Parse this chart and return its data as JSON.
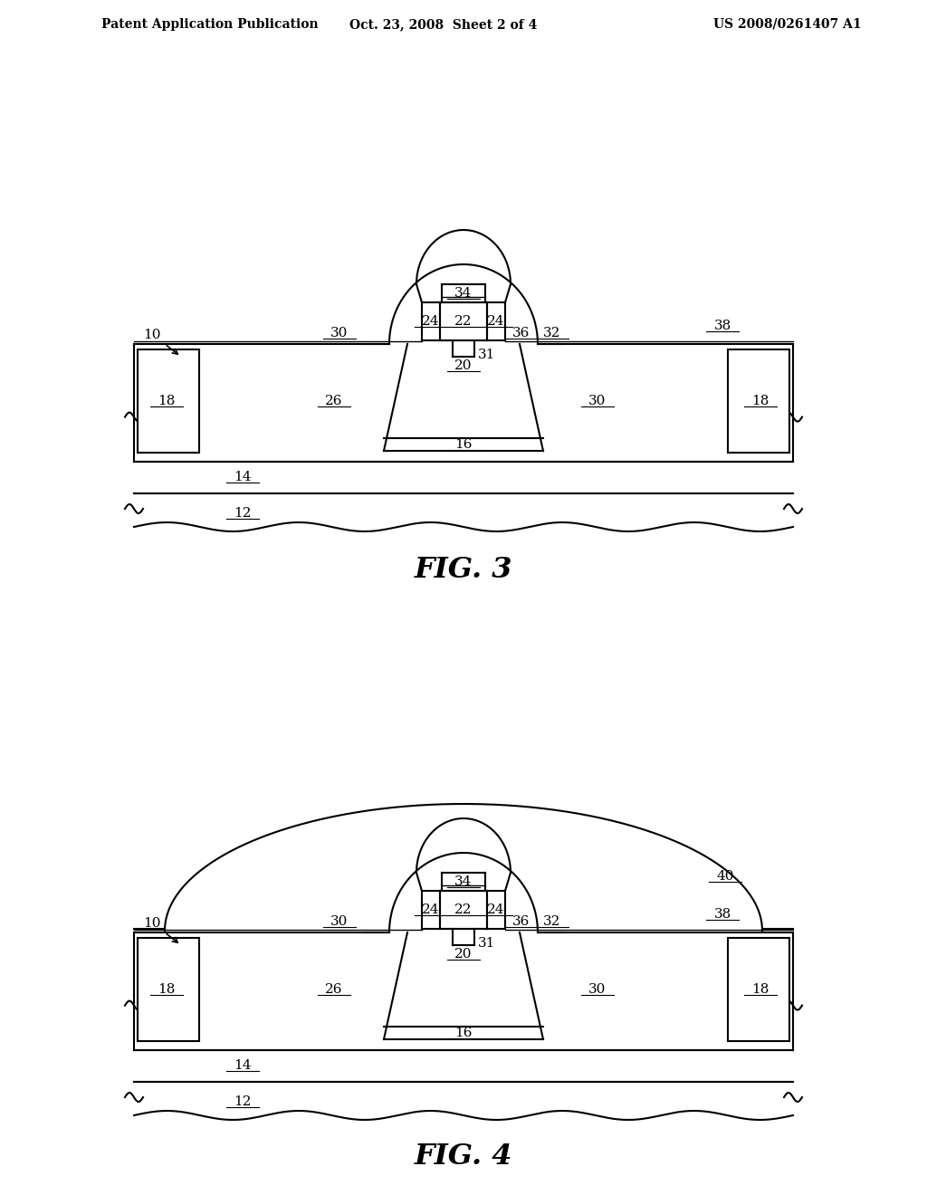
{
  "fig_width": 10.24,
  "fig_height": 13.2,
  "bg_color": "#ffffff",
  "header_left": "Patent Application Publication",
  "header_mid": "Oct. 23, 2008  Sheet 2 of 4",
  "header_right": "US 2008/0261407 A1",
  "fig3_label": "FIG. 3",
  "fig4_label": "FIG. 4",
  "line_color": "#000000",
  "lw": 1.5,
  "lw_thin": 1.0
}
